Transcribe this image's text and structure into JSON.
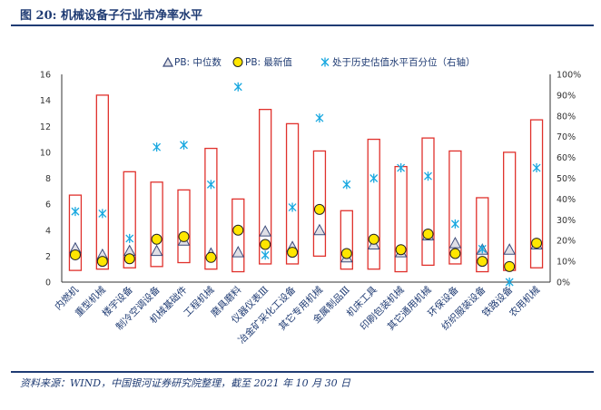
{
  "figure_title": "图 20: 机械设备子行业市净率水平",
  "source_note": "资料来源：WIND，中国银河证券研究院整理，截至 2021 年 10 月 30 日",
  "chart_data": {
    "type": "range-bar-with-markers",
    "legend": {
      "median": "PB: 中位数",
      "latest": "PB: 最新值",
      "percentile": "处于历史估值水平百分位（右轴）"
    },
    "legend_position": "top",
    "grid": false,
    "ylim": [
      0,
      16
    ],
    "yticks": [
      0,
      2,
      4,
      6,
      8,
      10,
      12,
      14,
      16
    ],
    "y2lim": [
      0,
      100
    ],
    "y2ticks": [
      "0%",
      "10%",
      "20%",
      "30%",
      "40%",
      "50%",
      "60%",
      "70%",
      "80%",
      "90%",
      "100%"
    ],
    "categories": [
      "内燃机",
      "重型机械",
      "楼宇设备",
      "制冷空调设备",
      "机械基础件",
      "工程机械",
      "磨具磨料",
      "仪器仪表Ⅲ",
      "冶金矿采化工设备",
      "其它专用机械",
      "金属制品Ⅲ",
      "机床工具",
      "印刷包装机械",
      "其它通用机械",
      "环保设备",
      "纺织服装设备",
      "铁路设备",
      "农用机械"
    ],
    "ranges": [
      [
        0.9,
        6.7
      ],
      [
        1.0,
        14.4
      ],
      [
        1.1,
        8.5
      ],
      [
        1.2,
        7.7
      ],
      [
        1.5,
        7.1
      ],
      [
        1.0,
        10.3
      ],
      [
        0.8,
        6.4
      ],
      [
        1.4,
        13.3
      ],
      [
        1.4,
        12.2
      ],
      [
        2.0,
        10.1
      ],
      [
        1.0,
        5.5
      ],
      [
        1.0,
        11.0
      ],
      [
        0.8,
        8.9
      ],
      [
        1.3,
        11.1
      ],
      [
        1.4,
        10.1
      ],
      [
        0.8,
        6.5
      ],
      [
        0.9,
        10.0
      ],
      [
        1.1,
        12.5
      ]
    ],
    "series": [
      {
        "name": "PB: 中位数",
        "values": [
          2.6,
          2.1,
          2.4,
          2.4,
          3.2,
          2.2,
          2.3,
          3.9,
          2.7,
          4.0,
          1.9,
          2.9,
          2.3,
          3.6,
          3.0,
          2.5,
          2.5,
          2.9
        ]
      },
      {
        "name": "PB: 最新值",
        "values": [
          2.1,
          1.6,
          1.8,
          3.3,
          3.5,
          1.9,
          4.0,
          2.9,
          2.3,
          5.6,
          2.2,
          3.3,
          2.5,
          3.7,
          2.2,
          1.6,
          1.2,
          3.0
        ]
      },
      {
        "name": "处于历史估值水平百分位（右轴）",
        "axis": "right",
        "values": [
          34,
          33,
          21,
          65,
          66,
          47,
          94,
          13,
          36,
          79,
          47,
          50,
          55,
          51,
          28,
          16,
          0,
          55
        ]
      }
    ]
  },
  "colors": {
    "range_border": "#e0312c",
    "median_marker": "#e0e0e6",
    "median_border": "#3a4a7a",
    "latest_fill": "#ffe600",
    "latest_border": "#222222",
    "percentile_marker": "#19a8e0",
    "axis": "#333333",
    "label": "#1f3b73",
    "brand_rule": "#1f3b73"
  }
}
